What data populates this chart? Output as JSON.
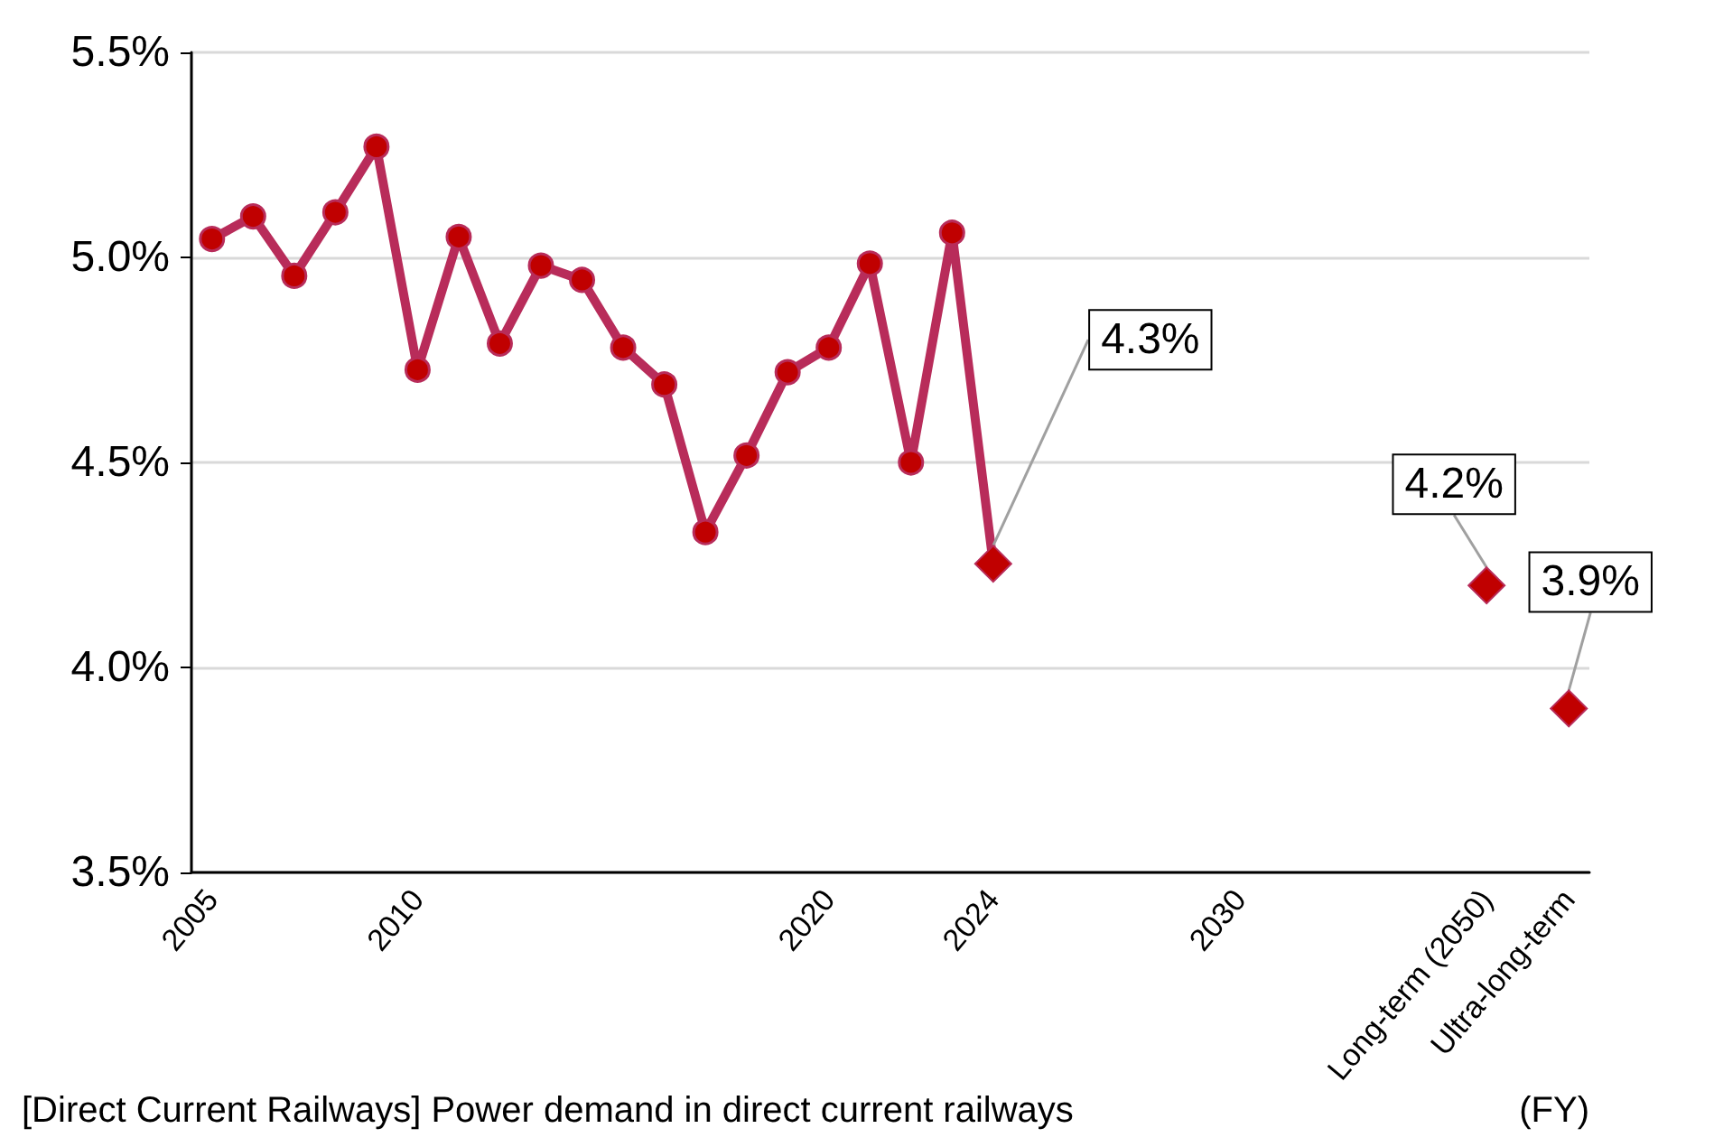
{
  "chart_data": {
    "type": "line",
    "xlabel": "(FY)",
    "categories": [
      "2005",
      null,
      null,
      null,
      null,
      "2010",
      null,
      null,
      null,
      null,
      null,
      null,
      null,
      null,
      null,
      "2020",
      null,
      null,
      null,
      "2024",
      null,
      null,
      null,
      null,
      null,
      "2030",
      null,
      null,
      null,
      null,
      null,
      "Long-term (2050)",
      null,
      "Ultra-long-term"
    ],
    "series": [
      {
        "color": "#b82c5a",
        "marker": "circle",
        "values": [
          5.045,
          5.1,
          4.955,
          5.11,
          5.27,
          4.726,
          5.05,
          4.79,
          4.98,
          4.945,
          4.78,
          4.69,
          4.33,
          4.517,
          4.72,
          4.78,
          4.985,
          4.5,
          5.06,
          4.253,
          null,
          null,
          null,
          null,
          null,
          null,
          null,
          null,
          null,
          null,
          null,
          null,
          null,
          null
        ]
      },
      {
        "type": "scatter",
        "color": "#c00000",
        "marker": "diamond",
        "values": [
          null,
          null,
          null,
          null,
          null,
          null,
          null,
          null,
          null,
          null,
          null,
          null,
          null,
          null,
          null,
          null,
          null,
          null,
          null,
          4.253,
          null,
          null,
          null,
          null,
          null,
          null,
          null,
          null,
          null,
          null,
          null,
          4.2,
          null,
          3.9
        ],
        "value_labels": [
          null,
          null,
          null,
          null,
          null,
          null,
          null,
          null,
          null,
          null,
          null,
          null,
          null,
          null,
          null,
          null,
          null,
          null,
          null,
          "4.3%",
          null,
          null,
          null,
          null,
          null,
          null,
          null,
          null,
          null,
          null,
          null,
          "4.2%",
          null,
          "3.9%"
        ]
      }
    ],
    "ylim": [
      3.5,
      5.5
    ],
    "yticks": [
      {
        "value": 3.5,
        "label": "3.5%"
      },
      {
        "value": 4.0,
        "label": "4.0%"
      },
      {
        "value": 4.5,
        "label": "4.5%"
      },
      {
        "value": 5.0,
        "label": "5.0%"
      },
      {
        "value": 5.5,
        "label": "5.5%"
      }
    ],
    "grid": "y",
    "annotations": [
      "[Direct Current Railways] Power demand in direct current railways"
    ]
  }
}
